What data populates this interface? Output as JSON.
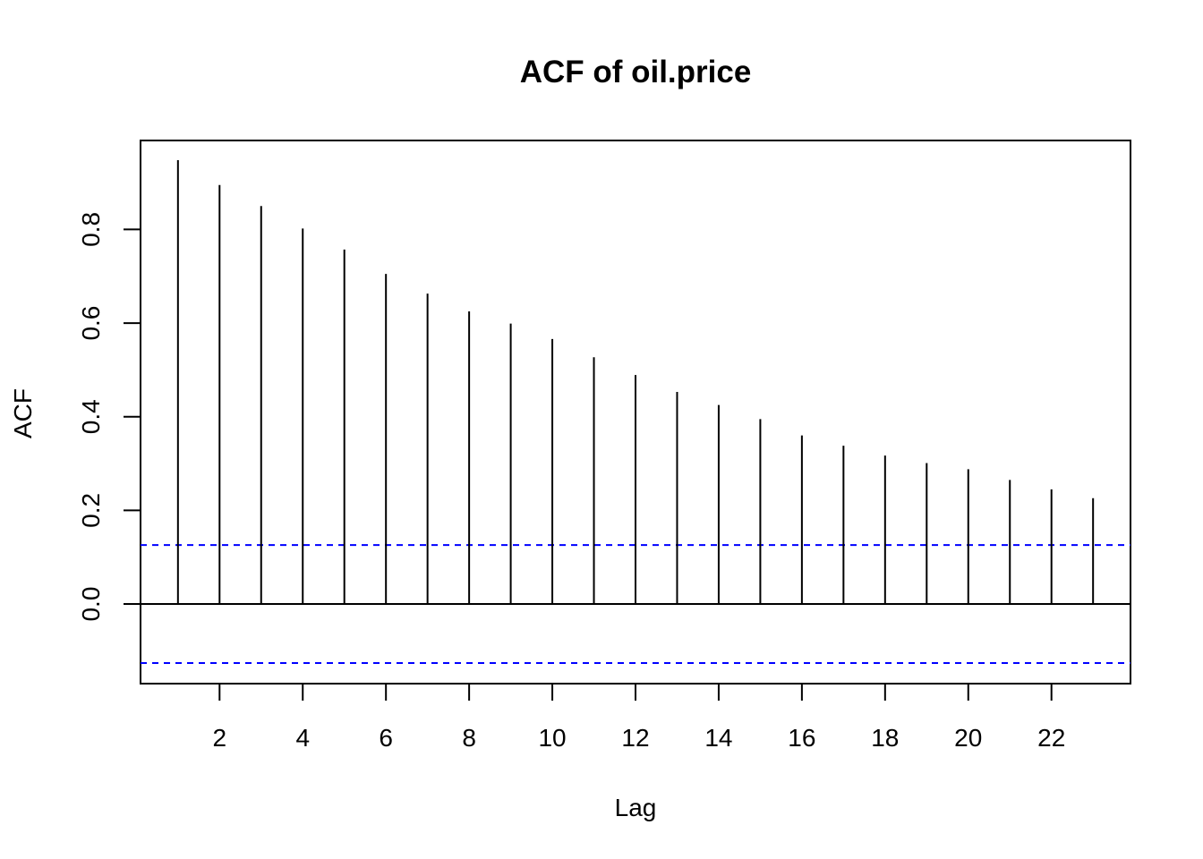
{
  "chart_data": {
    "type": "bar",
    "title": "ACF of oil.price",
    "xlabel": "Lag",
    "ylabel": "ACF",
    "xlim": [
      0.1,
      23.9
    ],
    "ylim": [
      -0.17,
      0.99
    ],
    "x_ticks": [
      2,
      4,
      6,
      8,
      10,
      12,
      14,
      16,
      18,
      20,
      22
    ],
    "y_ticks": [
      0.0,
      0.2,
      0.4,
      0.6,
      0.8
    ],
    "y_tick_labels": [
      "0.0",
      "0.2",
      "0.4",
      "0.6",
      "0.8"
    ],
    "lags": [
      1,
      2,
      3,
      4,
      5,
      6,
      7,
      8,
      9,
      10,
      11,
      12,
      13,
      14,
      15,
      16,
      17,
      18,
      19,
      20,
      21,
      22,
      23
    ],
    "values": [
      0.948,
      0.895,
      0.85,
      0.802,
      0.757,
      0.705,
      0.663,
      0.625,
      0.599,
      0.566,
      0.527,
      0.489,
      0.453,
      0.425,
      0.395,
      0.36,
      0.338,
      0.317,
      0.301,
      0.288,
      0.265,
      0.245,
      0.226
    ],
    "confidence_bounds": [
      0.126,
      -0.126
    ],
    "colors": {
      "bars": "#000000",
      "confidence": "#0000ff",
      "zero_line": "#000000"
    },
    "grid": false,
    "legend": false
  }
}
